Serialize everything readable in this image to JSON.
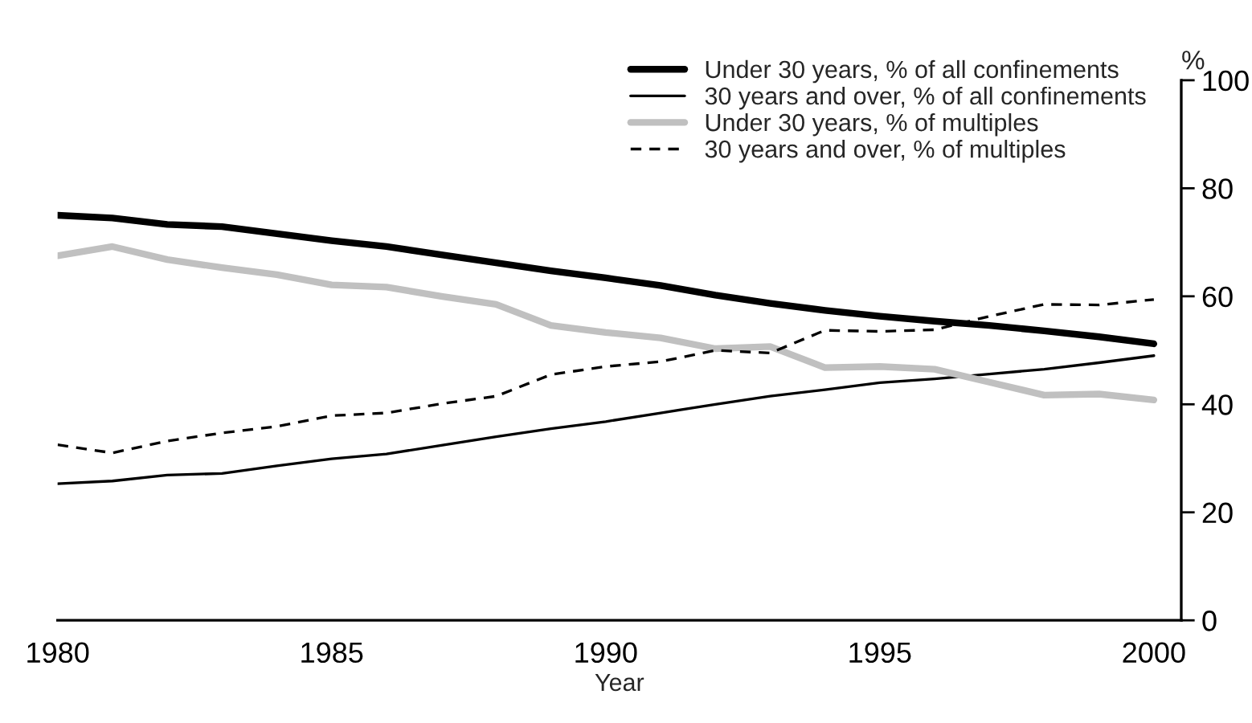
{
  "chart_data": {
    "type": "line",
    "xlabel": "Year",
    "ylabel": "%",
    "x": [
      1980,
      1981,
      1982,
      1983,
      1984,
      1985,
      1986,
      1987,
      1988,
      1989,
      1990,
      1991,
      1992,
      1993,
      1994,
      1995,
      1996,
      1997,
      1998,
      1999,
      2000
    ],
    "series": [
      {
        "name": "Under 30 years, % of all confinements",
        "color": "#000000",
        "line_style": "solid",
        "values": [
          75,
          74.5,
          73.3,
          72.9,
          71.6,
          70.3,
          69.2,
          67.7,
          66.2,
          64.7,
          63.4,
          62.0,
          60.2,
          58.7,
          57.4,
          56.3,
          55.4,
          54.6,
          53.6,
          52.5,
          51.2
        ]
      },
      {
        "name": "30 years and over, % of all confinements",
        "color": "#000000",
        "line_style": "solid",
        "values": [
          25.3,
          25.8,
          26.9,
          27.2,
          28.6,
          29.9,
          30.8,
          32.4,
          34.0,
          35.5,
          36.8,
          38.4,
          40.0,
          41.5,
          42.7,
          44.0,
          44.7,
          45.6,
          46.5,
          47.7,
          49.0
        ]
      },
      {
        "name": "Under 30 years, % of multiples",
        "color": "#c0c0c0",
        "line_style": "solid",
        "values": [
          67.5,
          69.2,
          66.8,
          65.3,
          64.0,
          62.1,
          61.7,
          60.0,
          58.5,
          54.6,
          53.3,
          52.3,
          50.3,
          50.7,
          46.8,
          47.0,
          46.5,
          44.1,
          41.7,
          41.9,
          40.8
        ]
      },
      {
        "name": "30 years and over, % of multiples",
        "color": "#000000",
        "line_style": "dashed",
        "values": [
          32.5,
          31.0,
          33.2,
          34.7,
          35.9,
          37.9,
          38.4,
          40.1,
          41.5,
          45.5,
          47.0,
          47.9,
          50.0,
          49.5,
          53.7,
          53.5,
          53.8,
          56.3,
          58.5,
          58.4,
          59.4
        ]
      }
    ],
    "xlim": [
      1980,
      2000.5
    ],
    "xticks": [
      1980,
      1985,
      1990,
      1995,
      2000
    ],
    "ylim": [
      0,
      100
    ],
    "yticks": [
      0,
      20,
      40,
      60,
      80,
      100
    ],
    "grid": false,
    "legend": "top right",
    "marker": "none"
  }
}
